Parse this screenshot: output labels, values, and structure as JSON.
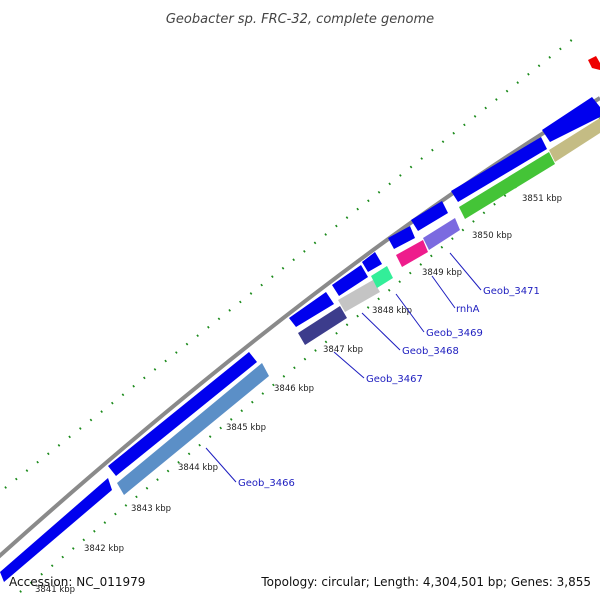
{
  "title": "Geobacter sp. FRC-32, complete genome",
  "footer": {
    "accession": "Accession: NC_011979",
    "summary": "Topology: circular; Length: 4,304,501 bp; Genes: 3,855"
  },
  "scale_labels": [
    "3841 kbp",
    "3842 kbp",
    "3843 kbp",
    "3844 kbp",
    "3845 kbp",
    "3846 kbp",
    "3847 kbp",
    "3848 kbp",
    "3849 kbp",
    "3850 kbp",
    "3851 kbp"
  ],
  "gene_labels": [
    "Geob_3466",
    "Geob_3467",
    "Geob_3468",
    "Geob_3469",
    "rnhA",
    "Geob_3471"
  ],
  "colors": {
    "backbone": "#8a8a8a",
    "forward_strand": "#0000ee",
    "tick": "#1a8a1a",
    "label": "#1d1dbf",
    "orf_marker": "#ee0000"
  }
}
